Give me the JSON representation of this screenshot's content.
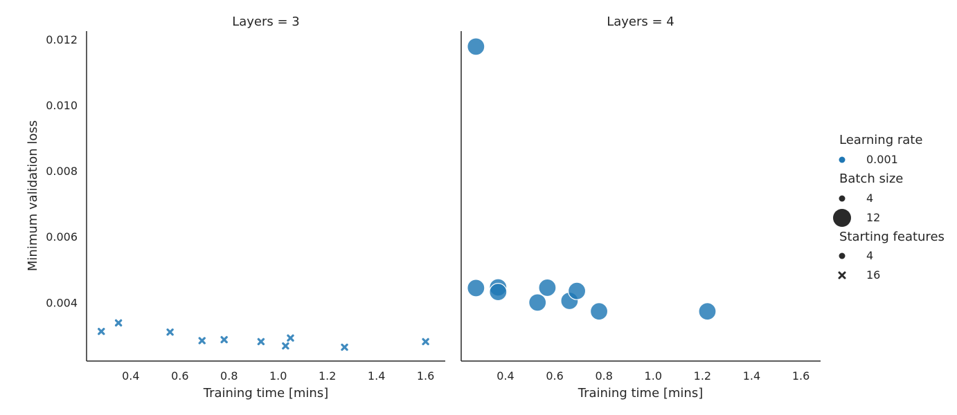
{
  "chart_data": {
    "type": "scatter",
    "xlabel": "Training time [mins]",
    "ylabel": "Minimum validation loss",
    "xlim": [
      0.22,
      1.68
    ],
    "ylim": [
      0.00222,
      0.01225
    ],
    "x_ticks": [
      "0.4",
      "0.6",
      "0.8",
      "1.0",
      "1.2",
      "1.4",
      "1.6"
    ],
    "y_ticks": [
      "0.004",
      "0.006",
      "0.008",
      "0.010",
      "0.012"
    ],
    "grid": false,
    "legend_position": "right",
    "colors": {
      "point": "#1f77b4",
      "legend_marker": "#2a2a2a"
    },
    "panels": [
      {
        "title": "Layers = 3",
        "points": [
          {
            "x": 0.28,
            "y": 0.00312,
            "batch_size": "4",
            "starting_features": "16"
          },
          {
            "x": 0.35,
            "y": 0.00338,
            "batch_size": "4",
            "starting_features": "16"
          },
          {
            "x": 0.56,
            "y": 0.0031,
            "batch_size": "4",
            "starting_features": "16"
          },
          {
            "x": 0.69,
            "y": 0.00284,
            "batch_size": "4",
            "starting_features": "16"
          },
          {
            "x": 0.78,
            "y": 0.00287,
            "batch_size": "4",
            "starting_features": "16"
          },
          {
            "x": 0.93,
            "y": 0.00281,
            "batch_size": "4",
            "starting_features": "16"
          },
          {
            "x": 1.03,
            "y": 0.00268,
            "batch_size": "4",
            "starting_features": "16"
          },
          {
            "x": 1.05,
            "y": 0.00292,
            "batch_size": "4",
            "starting_features": "16"
          },
          {
            "x": 1.27,
            "y": 0.00264,
            "batch_size": "4",
            "starting_features": "16"
          },
          {
            "x": 1.6,
            "y": 0.00281,
            "batch_size": "4",
            "starting_features": "16"
          }
        ]
      },
      {
        "title": "Layers = 4",
        "points": [
          {
            "x": 0.28,
            "y": 0.01178,
            "batch_size": "12",
            "starting_features": "4"
          },
          {
            "x": 0.28,
            "y": 0.00444,
            "batch_size": "12",
            "starting_features": "4"
          },
          {
            "x": 0.37,
            "y": 0.00446,
            "batch_size": "12",
            "starting_features": "4"
          },
          {
            "x": 0.37,
            "y": 0.00432,
            "batch_size": "12",
            "starting_features": "4"
          },
          {
            "x": 0.53,
            "y": 0.004,
            "batch_size": "12",
            "starting_features": "4"
          },
          {
            "x": 0.57,
            "y": 0.00445,
            "batch_size": "12",
            "starting_features": "4"
          },
          {
            "x": 0.66,
            "y": 0.00405,
            "batch_size": "12",
            "starting_features": "4"
          },
          {
            "x": 0.69,
            "y": 0.00435,
            "batch_size": "12",
            "starting_features": "4"
          },
          {
            "x": 0.78,
            "y": 0.00373,
            "batch_size": "12",
            "starting_features": "4"
          },
          {
            "x": 1.22,
            "y": 0.00373,
            "batch_size": "12",
            "starting_features": "4"
          }
        ]
      }
    ],
    "legend": {
      "hue": {
        "title": "Learning rate",
        "entries": [
          "0.001"
        ]
      },
      "size": {
        "title": "Batch size",
        "entries": [
          "4",
          "12"
        ]
      },
      "style": {
        "title": "Starting features",
        "entries": [
          "4",
          "16"
        ]
      }
    }
  }
}
